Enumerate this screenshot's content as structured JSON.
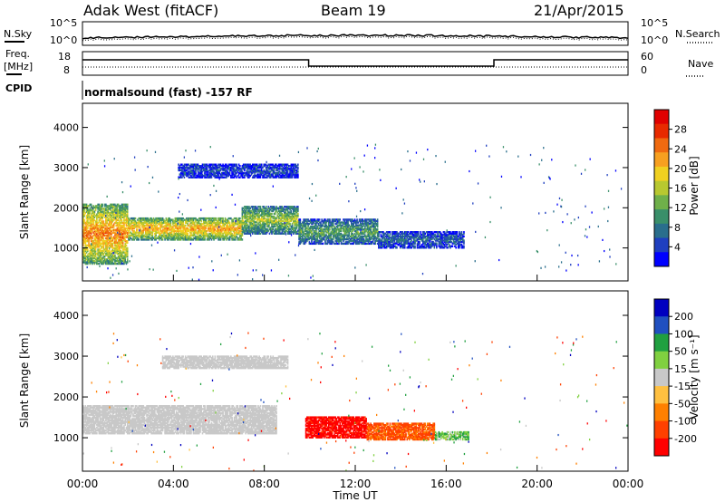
{
  "header": {
    "station": "Adak West (fitACF)",
    "beam": "Beam 19",
    "date": "21/Apr/2015"
  },
  "status_panels": {
    "nsky_label": "N.Sky",
    "nsky_ticks": [
      "10^5",
      "10^0"
    ],
    "nsearch_label": "N.Search",
    "freq_label_1": "Freq.",
    "freq_label_2": "[MHz]",
    "freq_ticks": [
      "18",
      "8"
    ],
    "nave_label": "Nave",
    "nave_ticks": [
      "60",
      "0"
    ],
    "cpid_label": "CPID",
    "cpid_text": "normalsound (fast) -157 RF"
  },
  "chart_data": [
    {
      "type": "heatmap",
      "panel": "power",
      "ylabel": "Slant Range [km]",
      "yticks": [
        1000,
        2000,
        3000,
        4000
      ],
      "ylim": [
        180,
        4600
      ],
      "xlim_hours": [
        0,
        24
      ],
      "colorbar_label": "Power [dB]",
      "colorbar_ticks": [
        "28",
        "24",
        "20",
        "16",
        "12",
        "8",
        "4"
      ],
      "colorbar_colors": [
        "#0000ff",
        "#1f3fbf",
        "#2a6e8c",
        "#3a8f6a",
        "#6fb04a",
        "#b8c830",
        "#f0d020",
        "#f7a020",
        "#f06a10",
        "#e82a00",
        "#e00000"
      ],
      "echo_regions": [
        {
          "t0": 0.0,
          "t1": 2.0,
          "r0": 600,
          "r1": 2100,
          "level": 0.7
        },
        {
          "t0": 2.0,
          "t1": 7.0,
          "r0": 1200,
          "r1": 1750,
          "level": 0.65
        },
        {
          "t0": 7.0,
          "t1": 9.5,
          "r0": 1350,
          "r1": 2050,
          "level": 0.45
        },
        {
          "t0": 9.5,
          "t1": 13.0,
          "r0": 1100,
          "r1": 1700,
          "level": 0.35
        },
        {
          "t0": 13.0,
          "t1": 16.8,
          "r0": 1000,
          "r1": 1400,
          "level": 0.2
        },
        {
          "t0": 4.2,
          "t1": 9.5,
          "r0": 2750,
          "r1": 3100,
          "level": 0.15
        }
      ]
    },
    {
      "type": "heatmap",
      "panel": "velocity",
      "ylabel": "Slant Range [km]",
      "xlabel": "Time UT",
      "xticks": [
        "00:00",
        "04:00",
        "08:00",
        "12:00",
        "16:00",
        "20:00",
        "00:00"
      ],
      "yticks": [
        1000,
        2000,
        3000,
        4000
      ],
      "ylim": [
        180,
        4600
      ],
      "xlim_hours": [
        0,
        24
      ],
      "colorbar_label": "Velocity [m s⁻¹]",
      "colorbar_ticks": [
        "200",
        "100",
        "50",
        "15",
        "-15",
        "-50",
        "-100",
        "-200"
      ],
      "colorbar_colors": [
        "#ff0000",
        "#ff4000",
        "#ff8000",
        "#ffc040",
        "#c8c8c8",
        "#80d040",
        "#20a040",
        "#2050c0",
        "#0000c0"
      ],
      "echo_regions": [
        {
          "t0": 0.0,
          "t1": 8.5,
          "r0": 1100,
          "r1": 1800,
          "v": "ground"
        },
        {
          "t0": 9.8,
          "t1": 12.5,
          "r0": 1000,
          "r1": 1500,
          "v": -180
        },
        {
          "t0": 12.5,
          "t1": 15.5,
          "r0": 950,
          "r1": 1350,
          "v": -90
        },
        {
          "t0": 15.5,
          "t1": 17.0,
          "r0": 950,
          "r1": 1150,
          "v": 40
        },
        {
          "t0": 3.5,
          "t1": 9.0,
          "r0": 2700,
          "r1": 3000,
          "v": "ground"
        }
      ]
    }
  ]
}
